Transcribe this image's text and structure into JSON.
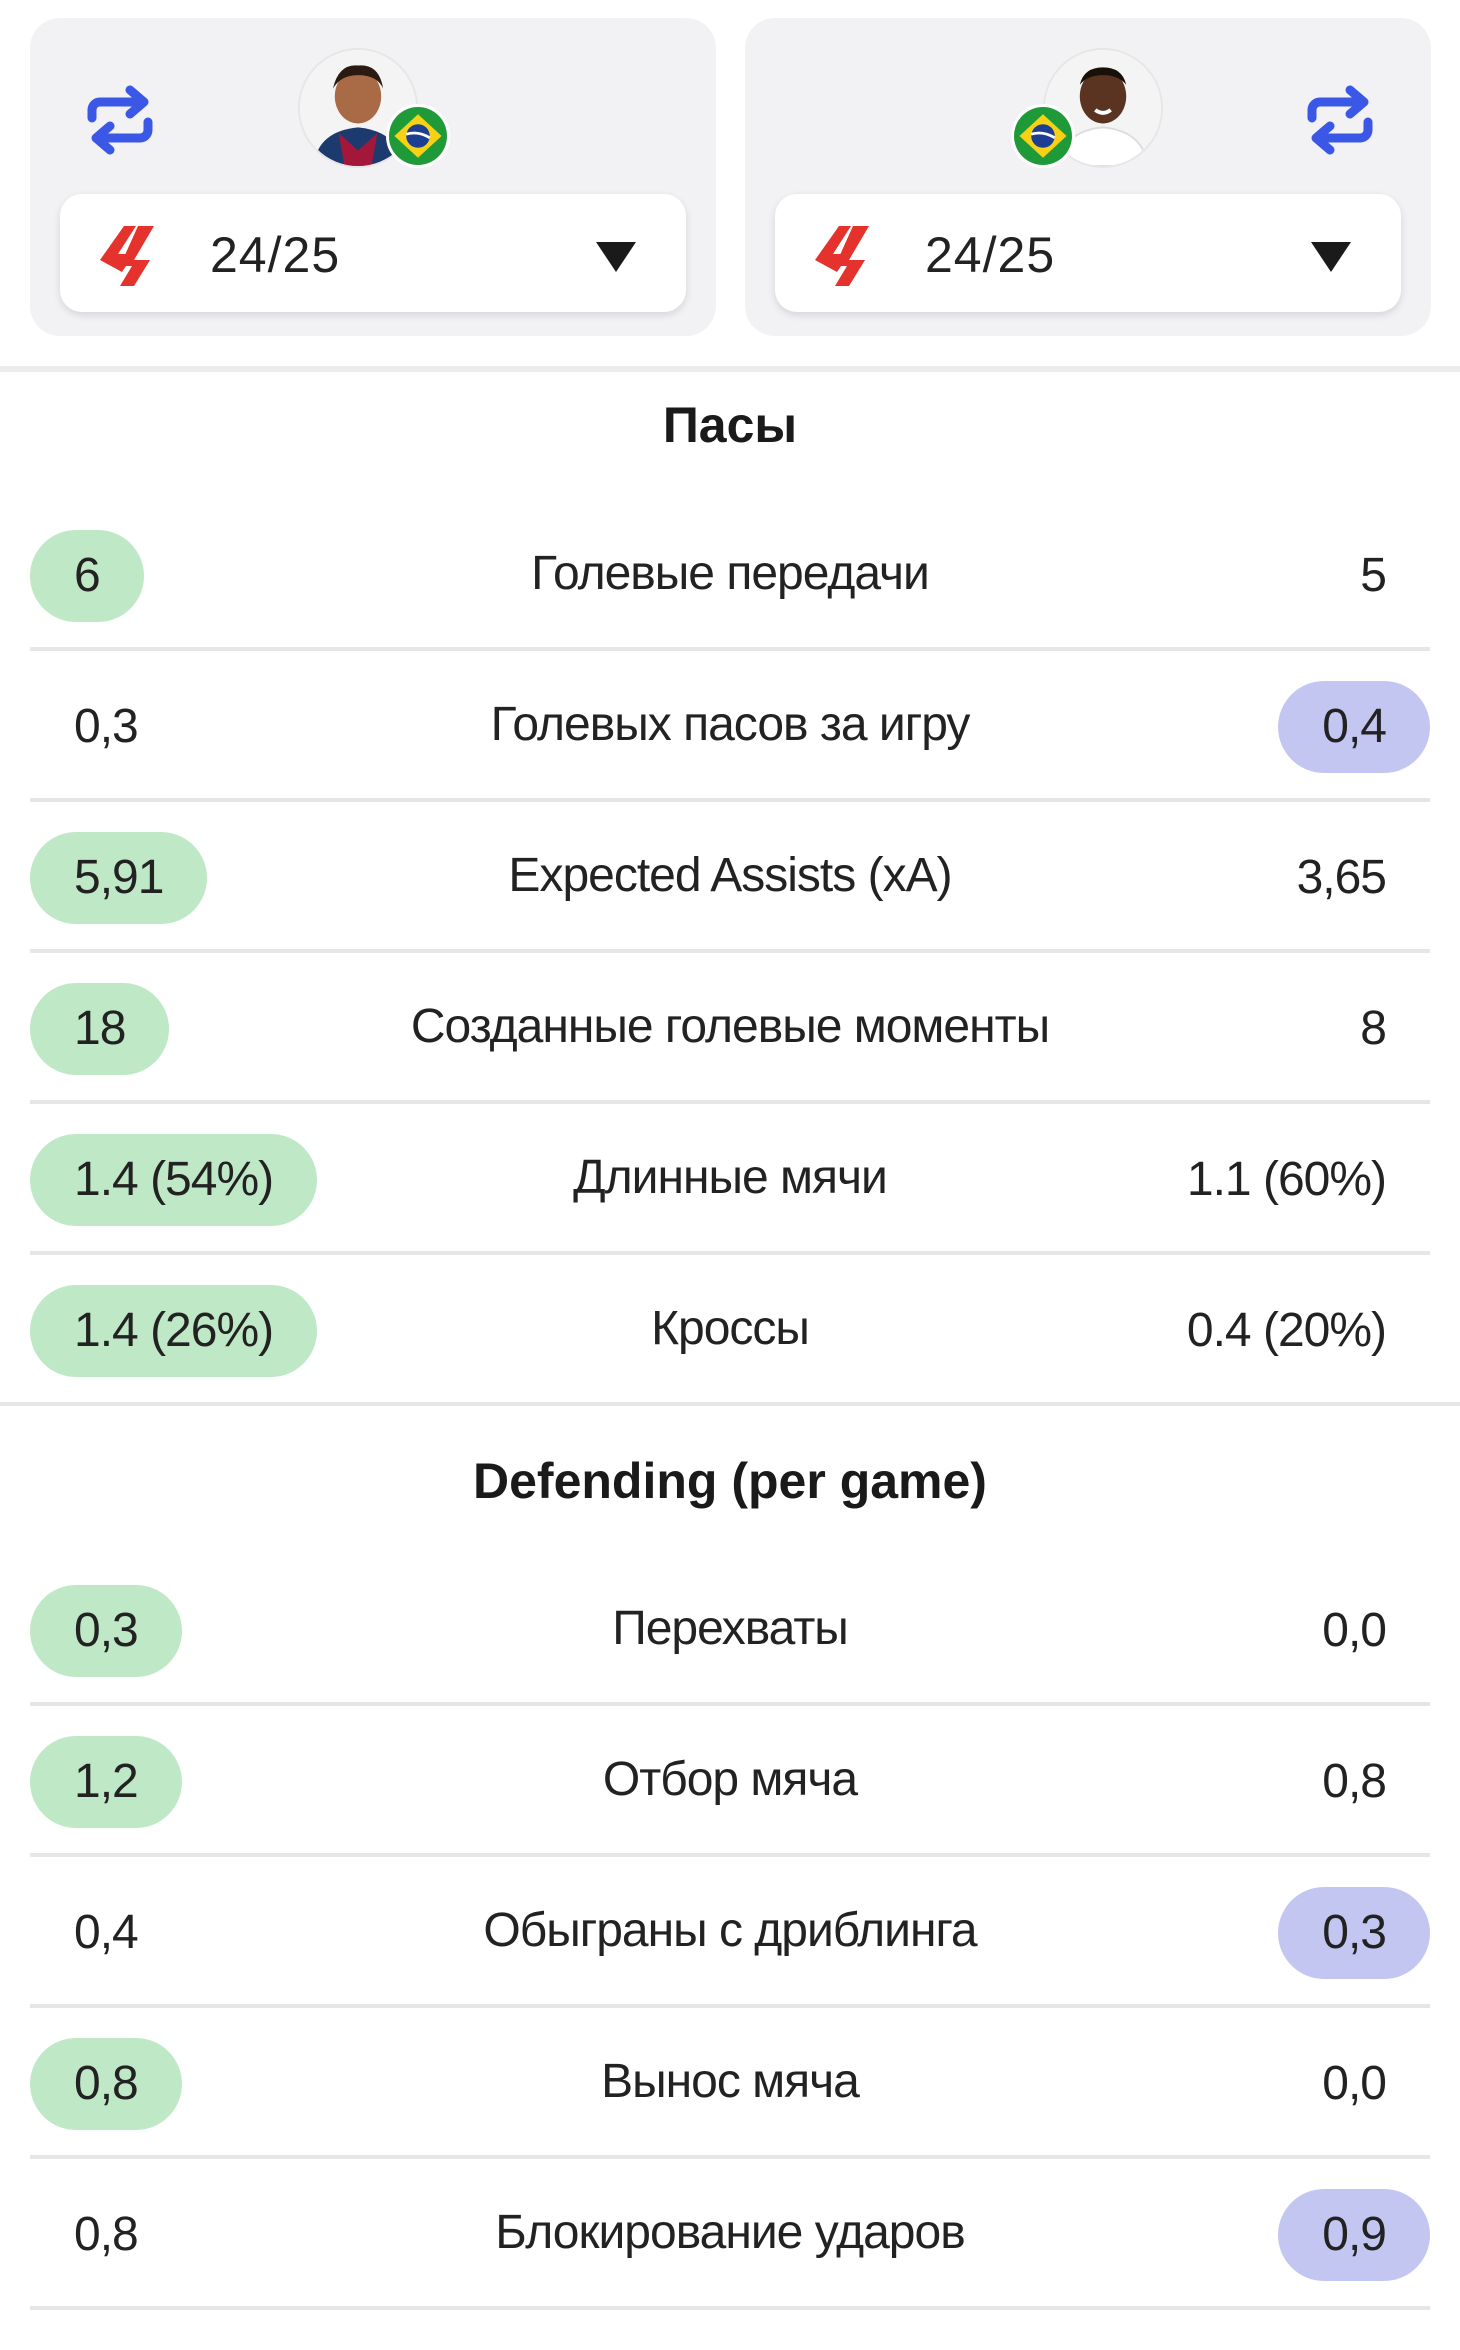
{
  "players": {
    "left": {
      "season": "24/25",
      "flag": "brazil-flag-icon"
    },
    "right": {
      "season": "24/25",
      "flag": "brazil-flag-icon"
    }
  },
  "colors": {
    "accent_blue": "#3b57e6",
    "league_red": "#e5322d",
    "highlight_green": "#bfe8c6",
    "highlight_blue": "#c4c6f2"
  },
  "sections": {
    "passing": {
      "title": "Пасы",
      "rows": [
        {
          "label": "Голевые передачи",
          "left": "6",
          "right": "5",
          "highlight": "left"
        },
        {
          "label": "Голевых пасов за игру",
          "left": "0,3",
          "right": "0,4",
          "highlight": "right"
        },
        {
          "label": "Expected Assists (xA)",
          "left": "5,91",
          "right": "3,65",
          "highlight": "left"
        },
        {
          "label": "Созданные голевые моменты",
          "left": "18",
          "right": "8",
          "highlight": "left"
        },
        {
          "label": "Длинные мячи",
          "left": "1.4 (54%)",
          "right": "1.1 (60%)",
          "highlight": "left"
        },
        {
          "label": "Кроссы",
          "left": "1.4 (26%)",
          "right": "0.4 (20%)",
          "highlight": "left"
        }
      ]
    },
    "defending": {
      "title": "Defending (per game)",
      "rows": [
        {
          "label": "Перехваты",
          "left": "0,3",
          "right": "0,0",
          "highlight": "left"
        },
        {
          "label": "Отбор мяча",
          "left": "1,2",
          "right": "0,8",
          "highlight": "left"
        },
        {
          "label": "Обыграны с дриблинга",
          "left": "0,4",
          "right": "0,3",
          "highlight": "right"
        },
        {
          "label": "Вынос мяча",
          "left": "0,8",
          "right": "0,0",
          "highlight": "left"
        },
        {
          "label": "Блокирование ударов",
          "left": "0,8",
          "right": "0,9",
          "highlight": "right"
        }
      ]
    }
  }
}
